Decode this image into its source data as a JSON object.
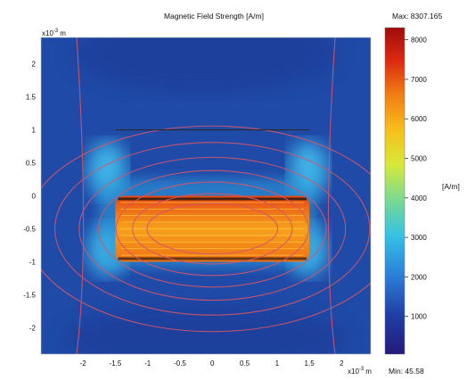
{
  "chart_data": {
    "type": "heatmap",
    "title": "Magnetic Field Strength [A/m]",
    "x_scale_label": "x10",
    "x_scale_exp": "-3",
    "x_unit": "m",
    "y_scale_label": "x10",
    "y_scale_exp": "-3",
    "y_unit": "m",
    "xlim": [
      -2.65,
      2.45
    ],
    "ylim": [
      -2.4,
      2.4
    ],
    "x_ticks": [
      -2,
      -1.5,
      -1,
      -0.5,
      0,
      0.5,
      1,
      1.5,
      2
    ],
    "x_tick_labels": [
      "-2",
      "-1.5",
      "-1",
      "-0.5",
      "0",
      "0.5",
      "1",
      "1.5",
      "2"
    ],
    "y_ticks": [
      2,
      1.5,
      1,
      0.5,
      0,
      -0.5,
      -1,
      -1.5,
      -2
    ],
    "y_tick_labels": [
      "2",
      "1.5",
      "1",
      "0.5",
      "0",
      "-0.5",
      "-1",
      "-1.5",
      "-2"
    ],
    "colorbar": {
      "max_label": "Max: 8307.165",
      "min_label": "Min: 45.58",
      "max": 8307.165,
      "min": 45.58,
      "unit_label": "[A/m]",
      "ticks": [
        8000,
        7000,
        6000,
        5000,
        4000,
        3000,
        2000,
        1000
      ],
      "tick_labels": [
        "8000",
        "7000",
        "6000",
        "5000",
        "4000",
        "3000",
        "2000",
        "1000"
      ]
    },
    "core_region": {
      "x": [
        -1.5,
        1.5
      ],
      "y": [
        -1.0,
        0.0
      ]
    },
    "probe_line": {
      "x": [
        -1.5,
        1.5
      ],
      "y": [
        1.0,
        1.0
      ]
    }
  },
  "colors": {
    "background_field": "#1f4aa8",
    "field_line": "#d2566a",
    "core_hot": "#f3a020",
    "probe_line": "#2a2a2a"
  }
}
